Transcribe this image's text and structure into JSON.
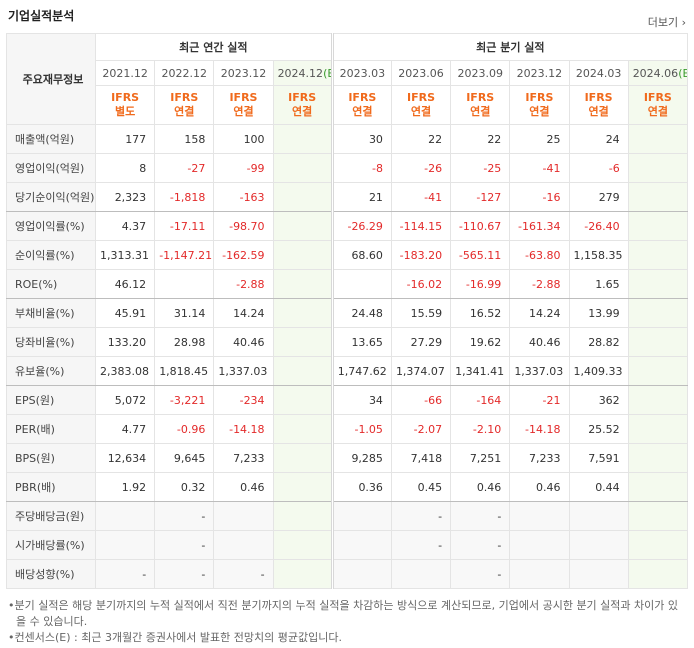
{
  "header": {
    "title": "기업실적분석",
    "more": "더보기"
  },
  "table": {
    "row_header": "주요재무정보",
    "groups": [
      {
        "label": "최근 연간 실적",
        "span": 4
      },
      {
        "label": "최근 분기 실적",
        "span": 6
      }
    ],
    "periods": [
      {
        "date": "2021.12"
      },
      {
        "date": "2022.12"
      },
      {
        "date": "2023.12"
      },
      {
        "date": "2024.12",
        "mark": "(E)"
      },
      {
        "date": "2023.03"
      },
      {
        "date": "2023.06"
      },
      {
        "date": "2023.09"
      },
      {
        "date": "2023.12"
      },
      {
        "date": "2024.03"
      },
      {
        "date": "2024.06",
        "mark": "(E)"
      }
    ],
    "standards": [
      [
        "IFRS",
        "별도"
      ],
      [
        "IFRS",
        "연결"
      ],
      [
        "IFRS",
        "연결"
      ],
      [
        "IFRS",
        "연결"
      ],
      [
        "IFRS",
        "연결"
      ],
      [
        "IFRS",
        "연결"
      ],
      [
        "IFRS",
        "연결"
      ],
      [
        "IFRS",
        "연결"
      ],
      [
        "IFRS",
        "연결"
      ],
      [
        "IFRS",
        "연결"
      ]
    ],
    "rows": [
      {
        "label": "매출액(억원)",
        "values": [
          "177",
          "158",
          "100",
          null,
          "30",
          "22",
          "22",
          "25",
          "24",
          null
        ]
      },
      {
        "label": "영업이익(억원)",
        "values": [
          "8",
          "-27",
          "-99",
          null,
          "-8",
          "-26",
          "-25",
          "-41",
          "-6",
          null
        ]
      },
      {
        "label": "당기순이익(억원)",
        "values": [
          "2,323",
          "-1,818",
          "-163",
          null,
          "21",
          "-41",
          "-127",
          "-16",
          "279",
          null
        ]
      },
      {
        "label": "영업이익률(%)",
        "values": [
          "4.37",
          "-17.11",
          "-98.70",
          null,
          "-26.29",
          "-114.15",
          "-110.67",
          "-161.34",
          "-26.40",
          null
        ]
      },
      {
        "label": "순이익률(%)",
        "values": [
          "1,313.31",
          "-1,147.21",
          "-162.59",
          null,
          "68.60",
          "-183.20",
          "-565.11",
          "-63.80",
          "1,158.35",
          null
        ]
      },
      {
        "label": "ROE(%)",
        "values": [
          "46.12",
          null,
          "-2.88",
          null,
          null,
          "-16.02",
          "-16.99",
          "-2.88",
          "1.65",
          null
        ]
      },
      {
        "label": "부채비율(%)",
        "values": [
          "45.91",
          "31.14",
          "14.24",
          null,
          "24.48",
          "15.59",
          "16.52",
          "14.24",
          "13.99",
          null
        ]
      },
      {
        "label": "당좌비율(%)",
        "values": [
          "133.20",
          "28.98",
          "40.46",
          null,
          "13.65",
          "27.29",
          "19.62",
          "40.46",
          "28.82",
          null
        ]
      },
      {
        "label": "유보율(%)",
        "values": [
          "2,383.08",
          "1,818.45",
          "1,337.03",
          null,
          "1,747.62",
          "1,374.07",
          "1,341.41",
          "1,337.03",
          "1,409.33",
          null
        ]
      },
      {
        "label": "EPS(원)",
        "values": [
          "5,072",
          "-3,221",
          "-234",
          null,
          "34",
          "-66",
          "-164",
          "-21",
          "362",
          null
        ]
      },
      {
        "label": "PER(배)",
        "values": [
          "4.77",
          "-0.96",
          "-14.18",
          null,
          "-1.05",
          "-2.07",
          "-2.10",
          "-14.18",
          "25.52",
          null
        ]
      },
      {
        "label": "BPS(원)",
        "values": [
          "12,634",
          "9,645",
          "7,233",
          null,
          "9,285",
          "7,418",
          "7,251",
          "7,233",
          "7,591",
          null
        ]
      },
      {
        "label": "PBR(배)",
        "values": [
          "1.92",
          "0.32",
          "0.46",
          null,
          "0.36",
          "0.45",
          "0.46",
          "0.46",
          "0.44",
          null
        ]
      },
      {
        "label": "주당배당금(원)",
        "values": [
          null,
          "-",
          null,
          null,
          null,
          "-",
          "-",
          null,
          null,
          null
        ]
      },
      {
        "label": "시가배당률(%)",
        "values": [
          null,
          "-",
          null,
          null,
          null,
          "-",
          "-",
          null,
          null,
          null
        ]
      },
      {
        "label": "배당성향(%)",
        "values": [
          "-",
          "-",
          "-",
          null,
          null,
          null,
          "-",
          null,
          null,
          null
        ]
      }
    ]
  },
  "notes": [
    "분기 실적은 해당 분기까지의 누적 실적에서 직전 분기까지의 누적 실적을 차감하는 방식으로 계산되므로, 기업에서 공시한 분기 실적과 차이가 있을 수 있습니다.",
    "컨센서스(E) : 최근 3개월간 증권사에서 발표한 전망치의 평균값입니다."
  ]
}
